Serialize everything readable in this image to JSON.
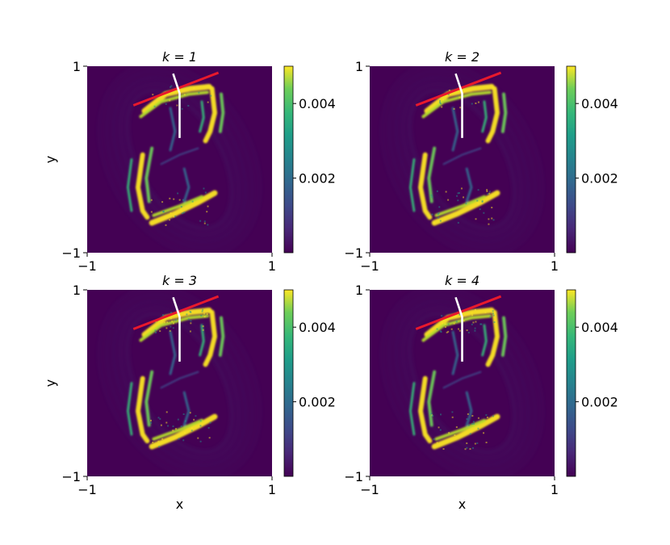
{
  "figure": {
    "xlabel": "x",
    "ylabel": "y",
    "colormap": "viridis",
    "colors": {
      "background": "#ffffff",
      "field_low": "#440154",
      "field_high": "#fde725",
      "red_line": "#e8192c",
      "white_line": "#ffffff"
    }
  },
  "chart_data": [
    {
      "type": "heatmap",
      "title": "k = 1",
      "k": 1,
      "xlim": [
        -1,
        1
      ],
      "ylim": [
        -1,
        1
      ],
      "x_ticks": [
        "−1",
        "1"
      ],
      "y_ticks": [
        "−1",
        "1"
      ],
      "xlabel": "",
      "ylabel": "y",
      "colorbar": {
        "range": [
          0,
          0.005
        ],
        "ticks": [
          0.002,
          0.004
        ],
        "tick_labels": [
          "0.002",
          "0.004"
        ]
      },
      "red_line": [
        [
          -0.5,
          0.58
        ],
        [
          0.42,
          0.93
        ]
      ],
      "white_line": [
        [
          -0.07,
          0.92
        ],
        [
          0.0,
          0.71
        ],
        [
          0.0,
          0.23
        ]
      ]
    },
    {
      "type": "heatmap",
      "title": "k = 2",
      "k": 2,
      "xlim": [
        -1,
        1
      ],
      "ylim": [
        -1,
        1
      ],
      "x_ticks": [
        "−1",
        "1"
      ],
      "y_ticks": [
        "−1",
        "1"
      ],
      "xlabel": "",
      "ylabel": "",
      "colorbar": {
        "range": [
          0,
          0.005
        ],
        "ticks": [
          0.002,
          0.004
        ],
        "tick_labels": [
          "0.002",
          "0.004"
        ]
      },
      "red_line": [
        [
          -0.5,
          0.58
        ],
        [
          0.42,
          0.93
        ]
      ],
      "white_line": [
        [
          -0.07,
          0.92
        ],
        [
          0.0,
          0.71
        ],
        [
          0.0,
          0.23
        ]
      ]
    },
    {
      "type": "heatmap",
      "title": "k = 3",
      "k": 3,
      "xlim": [
        -1,
        1
      ],
      "ylim": [
        -1,
        1
      ],
      "x_ticks": [
        "−1",
        "1"
      ],
      "y_ticks": [
        "−1",
        "1"
      ],
      "xlabel": "x",
      "ylabel": "y",
      "colorbar": {
        "range": [
          0,
          0.005
        ],
        "ticks": [
          0.002,
          0.004
        ],
        "tick_labels": [
          "0.002",
          "0.004"
        ]
      },
      "red_line": [
        [
          -0.5,
          0.58
        ],
        [
          0.42,
          0.93
        ]
      ],
      "white_line": [
        [
          -0.07,
          0.92
        ],
        [
          0.0,
          0.71
        ],
        [
          0.0,
          0.23
        ]
      ]
    },
    {
      "type": "heatmap",
      "title": "k = 4",
      "k": 4,
      "xlim": [
        -1,
        1
      ],
      "ylim": [
        -1,
        1
      ],
      "x_ticks": [
        "−1",
        "1"
      ],
      "y_ticks": [
        "−1",
        "1"
      ],
      "xlabel": "x",
      "ylabel": "",
      "colorbar": {
        "range": [
          0,
          0.005
        ],
        "ticks": [
          0.002,
          0.004
        ],
        "tick_labels": [
          "0.002",
          "0.004"
        ]
      },
      "red_line": [
        [
          -0.5,
          0.58
        ],
        [
          0.42,
          0.93
        ]
      ],
      "white_line": [
        [
          -0.07,
          0.92
        ],
        [
          0.0,
          0.71
        ],
        [
          0.0,
          0.23
        ]
      ]
    }
  ]
}
